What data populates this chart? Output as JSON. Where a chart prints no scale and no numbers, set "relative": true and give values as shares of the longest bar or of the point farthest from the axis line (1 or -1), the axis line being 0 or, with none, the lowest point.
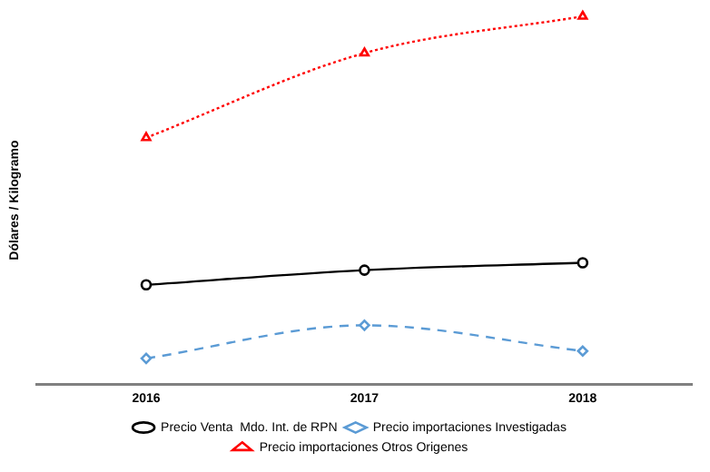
{
  "chart_data": {
    "type": "line",
    "ylabel": "Dólares / Kilogramo",
    "categories": [
      "2016",
      "2017",
      "2018"
    ],
    "relative": true,
    "grid": false,
    "legend": "bottom",
    "series": [
      {
        "name": "Precio Venta  Mdo. Int. de RPN",
        "color": "#000000",
        "values": [
          0.27,
          0.31,
          0.33
        ],
        "marker": "circle",
        "line_style": "solid"
      },
      {
        "name": "Precio importaciones Investigadas",
        "color": "#5b9bd5",
        "values": [
          0.07,
          0.16,
          0.09
        ],
        "marker": "diamond",
        "line_style": "dashed"
      },
      {
        "name": "Precio importaciones Otros Origenes",
        "color": "#ff0000",
        "values": [
          0.67,
          0.9,
          1
        ],
        "marker": "triangle",
        "line_style": "dotted"
      }
    ]
  }
}
